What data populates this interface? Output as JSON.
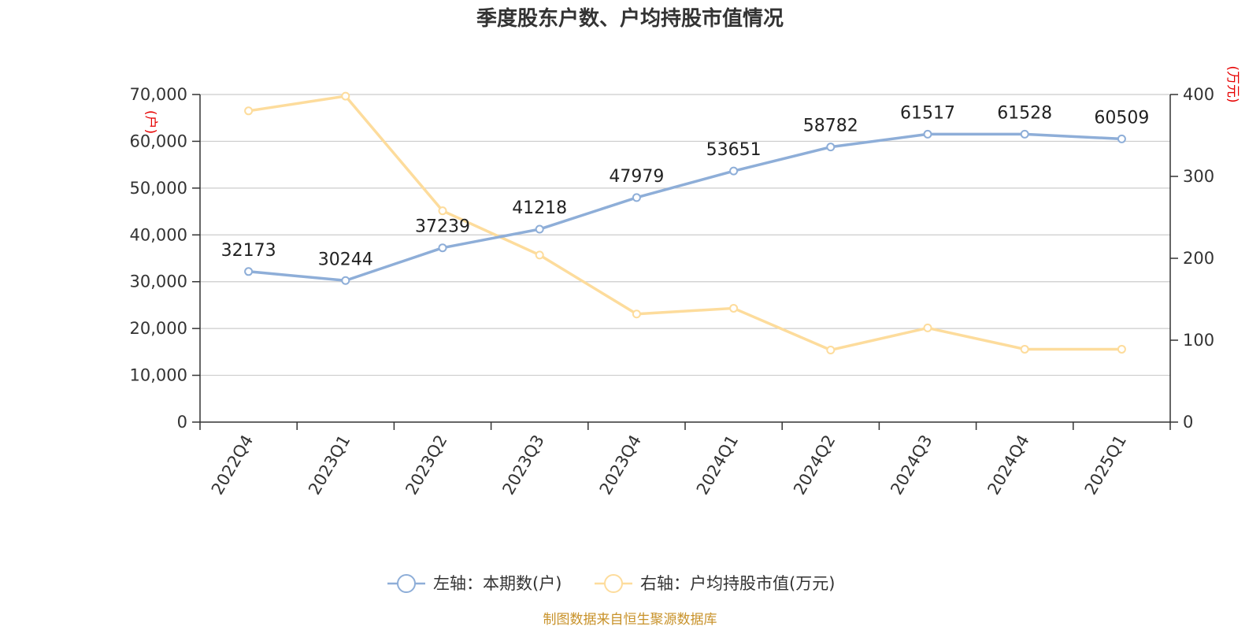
{
  "title": "季度股东户数、户均持股市值情况",
  "source": "制图数据来自恒生聚源数据库",
  "legend": {
    "left_label": "左轴：本期数(户)",
    "right_label": "右轴：户均持股市值(万元)"
  },
  "colors": {
    "series1": "#8eaed8",
    "series2": "#fddc9c",
    "axis_unit": "#e60000",
    "grid": "#cccccc",
    "source": "#c8922a"
  },
  "chart_data": {
    "type": "line",
    "categories": [
      "2022Q4",
      "2023Q1",
      "2023Q2",
      "2023Q3",
      "2023Q4",
      "2024Q1",
      "2024Q2",
      "2024Q3",
      "2024Q4",
      "2025Q1"
    ],
    "series": [
      {
        "name": "本期数(户)",
        "axis": "left",
        "values": [
          32173,
          30244,
          37239,
          41218,
          47979,
          53651,
          58782,
          61517,
          61528,
          60509
        ],
        "data_labels": [
          "32173",
          "30244",
          "37239",
          "41218",
          "47979",
          "53651",
          "58782",
          "61517",
          "61528",
          "60509"
        ]
      },
      {
        "name": "户均持股市值(万元)",
        "axis": "right",
        "values": [
          380,
          398,
          258,
          204,
          132,
          139,
          88,
          115,
          89,
          89
        ]
      }
    ],
    "left_axis": {
      "unit": "(户)",
      "ylim": [
        0,
        70000
      ],
      "ticks": [
        0,
        10000,
        20000,
        30000,
        40000,
        50000,
        60000,
        70000
      ],
      "tick_labels": [
        "0",
        "10,000",
        "20,000",
        "30,000",
        "40,000",
        "50,000",
        "60,000",
        "70,000"
      ]
    },
    "right_axis": {
      "unit": "(万元)",
      "ylim": [
        0,
        400
      ],
      "ticks": [
        0,
        100,
        200,
        300,
        400
      ],
      "tick_labels": [
        "0",
        "100",
        "200",
        "300",
        "400"
      ]
    },
    "grid": true,
    "legend_position": "bottom-center"
  }
}
